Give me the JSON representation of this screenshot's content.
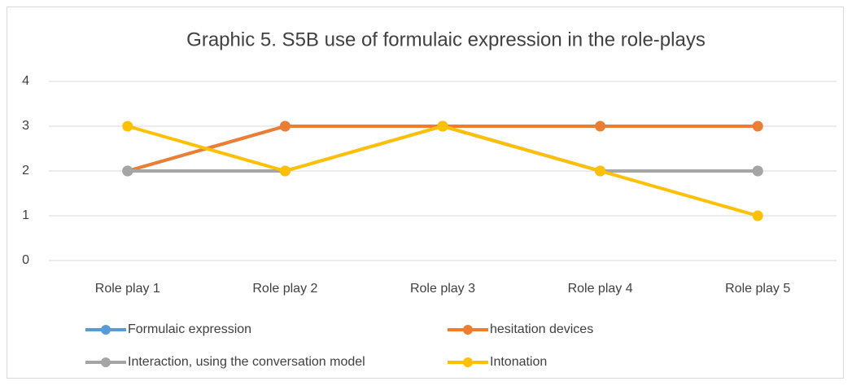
{
  "chart_data": {
    "type": "line",
    "title": "Graphic 5. S5B use of  formulaic expression in the role-plays",
    "categories": [
      "Role play 1",
      "Role play 2",
      "Role play 3",
      "Role play 4",
      "Role play 5"
    ],
    "series": [
      {
        "name": "Formulaic expression",
        "color": "#5b9bd5",
        "values": [
          2,
          3,
          3,
          2,
          2
        ]
      },
      {
        "name": "hesitation devices",
        "color": "#ed7d31",
        "values": [
          2,
          3,
          3,
          3,
          3
        ]
      },
      {
        "name": "Interaction, using the conversation model",
        "color": "#a5a5a5",
        "values": [
          2,
          2,
          3,
          2,
          2
        ]
      },
      {
        "name": "Intonation",
        "color": "#ffc000",
        "values": [
          3,
          2,
          3,
          2,
          1
        ]
      }
    ],
    "ylim": [
      0,
      4
    ],
    "yticks": [
      0,
      1,
      2,
      3,
      4
    ],
    "grid": true,
    "legend": "bottom"
  }
}
